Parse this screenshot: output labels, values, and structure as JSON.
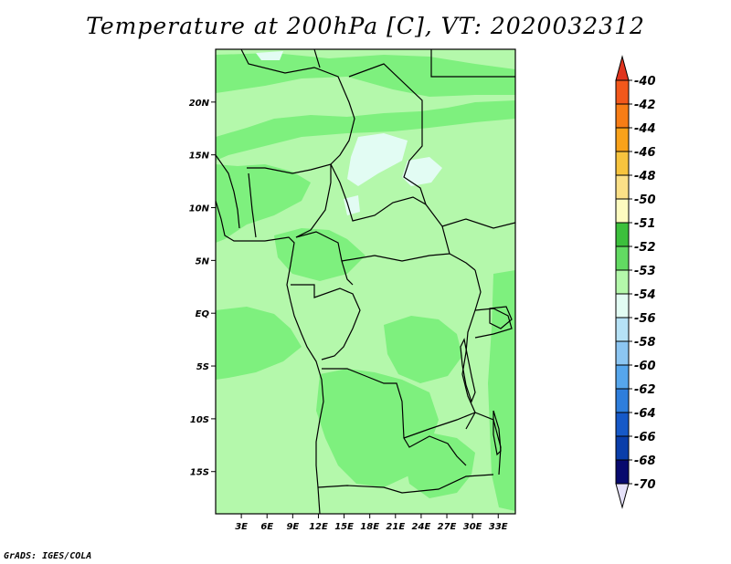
{
  "title": "Temperature at 200hPa [C], VT: 2020032312",
  "credit": "GrADS: IGES/COLA",
  "axes": {
    "lon_ticks": [
      "3E",
      "6E",
      "9E",
      "12E",
      "15E",
      "18E",
      "21E",
      "24E",
      "27E",
      "30E",
      "33E"
    ],
    "lat_ticks": [
      "20N",
      "15N",
      "10N",
      "5N",
      "EQ",
      "5S",
      "10S",
      "15S"
    ],
    "lon_values": [
      3,
      6,
      9,
      12,
      15,
      18,
      21,
      24,
      27,
      30,
      33
    ],
    "lat_values": [
      20,
      15,
      10,
      5,
      0,
      -5,
      -10,
      -15
    ],
    "lon_range": [
      0,
      35
    ],
    "lat_range": [
      -19,
      25
    ]
  },
  "colorbar": {
    "labels": [
      "-40",
      "-42",
      "-44",
      "-46",
      "-48",
      "-50",
      "-51",
      "-52",
      "-53",
      "-54",
      "-56",
      "-58",
      "-60",
      "-62",
      "-64",
      "-66",
      "-68",
      "-70"
    ],
    "colors": [
      "#e0341e",
      "#f2581b",
      "#f77d16",
      "#f9a21a",
      "#f7c43e",
      "#fbe087",
      "#fdfbc0",
      "#3cc03c",
      "#62da62",
      "#b4f8ab",
      "#e2fcf3",
      "#b6e2f6",
      "#8cc6f2",
      "#56a6ec",
      "#2e7edc",
      "#1659c8",
      "#0a3eaa",
      "#080a6e",
      "#e6e2fa"
    ]
  },
  "colors": {
    "light_green": "#b4f8ab",
    "mid_green": "#7ef07e",
    "pale_cyan": "#e2fcf3"
  }
}
